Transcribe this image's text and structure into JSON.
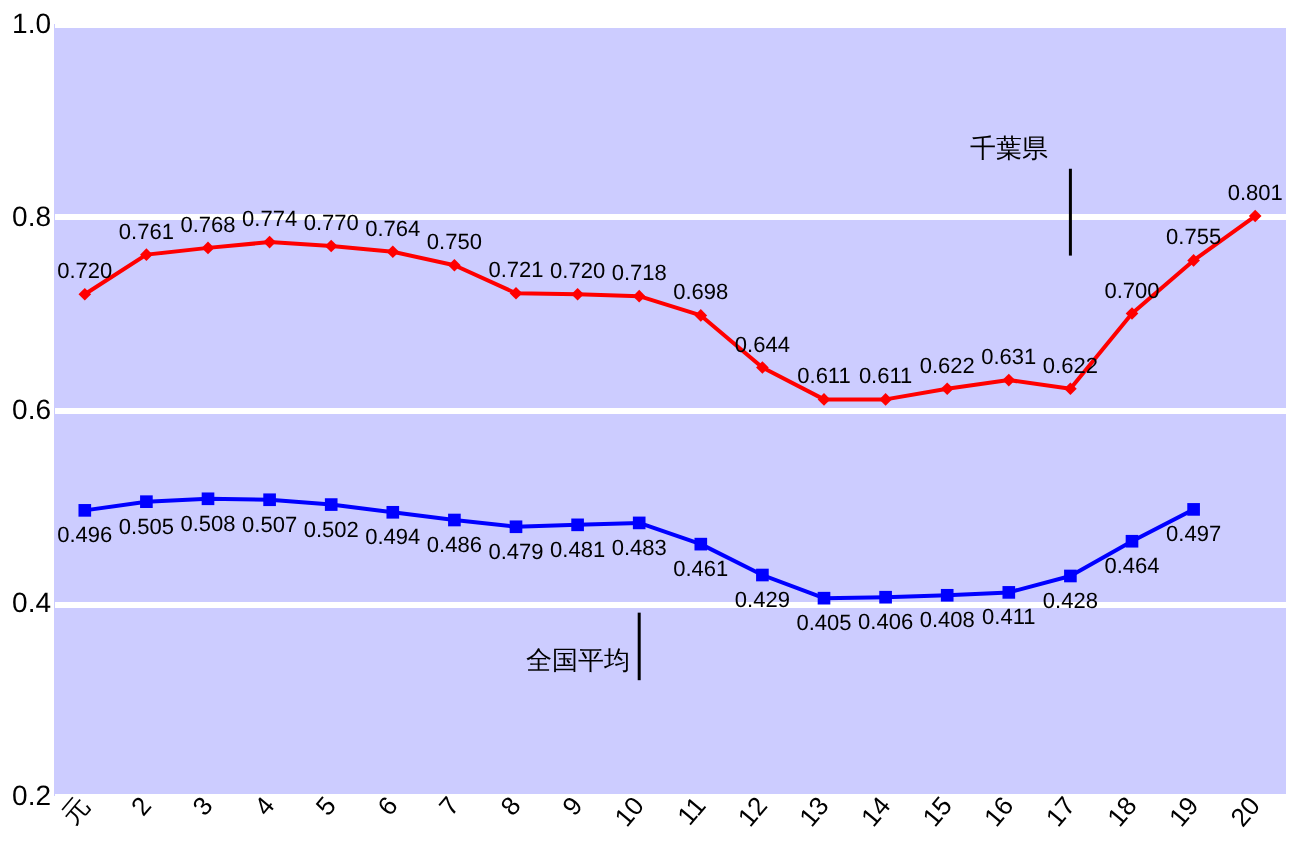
{
  "chart_data": {
    "type": "line",
    "categories": [
      "元",
      "2",
      "3",
      "4",
      "5",
      "6",
      "7",
      "8",
      "9",
      "10",
      "11",
      "12",
      "13",
      "14",
      "15",
      "16",
      "17",
      "18",
      "19",
      "20"
    ],
    "series": [
      {
        "name": "千葉県",
        "color": "#ff0000",
        "marker": "diamond",
        "values": [
          0.72,
          0.761,
          0.768,
          0.774,
          0.77,
          0.764,
          0.75,
          0.721,
          0.72,
          0.718,
          0.698,
          0.644,
          0.611,
          0.611,
          0.622,
          0.631,
          0.622,
          0.7,
          0.755,
          0.801
        ],
        "value_labels": [
          "0.720",
          "0.761",
          "0.768",
          "0.774",
          "0.770",
          "0.764",
          "0.750",
          "0.721",
          "0.720",
          "0.718",
          "0.698",
          "0.644",
          "0.611",
          "0.611",
          "0.622",
          "0.631",
          "0.622",
          "0.700",
          "0.755",
          "0.801"
        ]
      },
      {
        "name": "全国平均",
        "color": "#0000ff",
        "marker": "square",
        "values": [
          0.496,
          0.505,
          0.508,
          0.507,
          0.502,
          0.494,
          0.486,
          0.479,
          0.481,
          0.483,
          0.461,
          0.429,
          0.405,
          0.406,
          0.408,
          0.411,
          0.428,
          0.464,
          0.497,
          null
        ],
        "value_labels": [
          "0.496",
          "0.505",
          "0.508",
          "0.507",
          "0.502",
          "0.494",
          "0.486",
          "0.479",
          "0.481",
          "0.483",
          "0.461",
          "0.429",
          "0.405",
          "0.406",
          "0.408",
          "0.411",
          "0.428",
          "0.464",
          "0.497",
          null
        ]
      }
    ],
    "ylim": [
      0.2,
      1.0
    ],
    "yticks": [
      {
        "value": 0.2,
        "label": "0.2"
      },
      {
        "value": 0.4,
        "label": "0.4"
      },
      {
        "value": 0.6,
        "label": "0.6"
      },
      {
        "value": 0.8,
        "label": "0.8"
      },
      {
        "value": 1.0,
        "label": "1.0"
      }
    ],
    "grid": "y",
    "legend": false,
    "line_style": "solid"
  }
}
